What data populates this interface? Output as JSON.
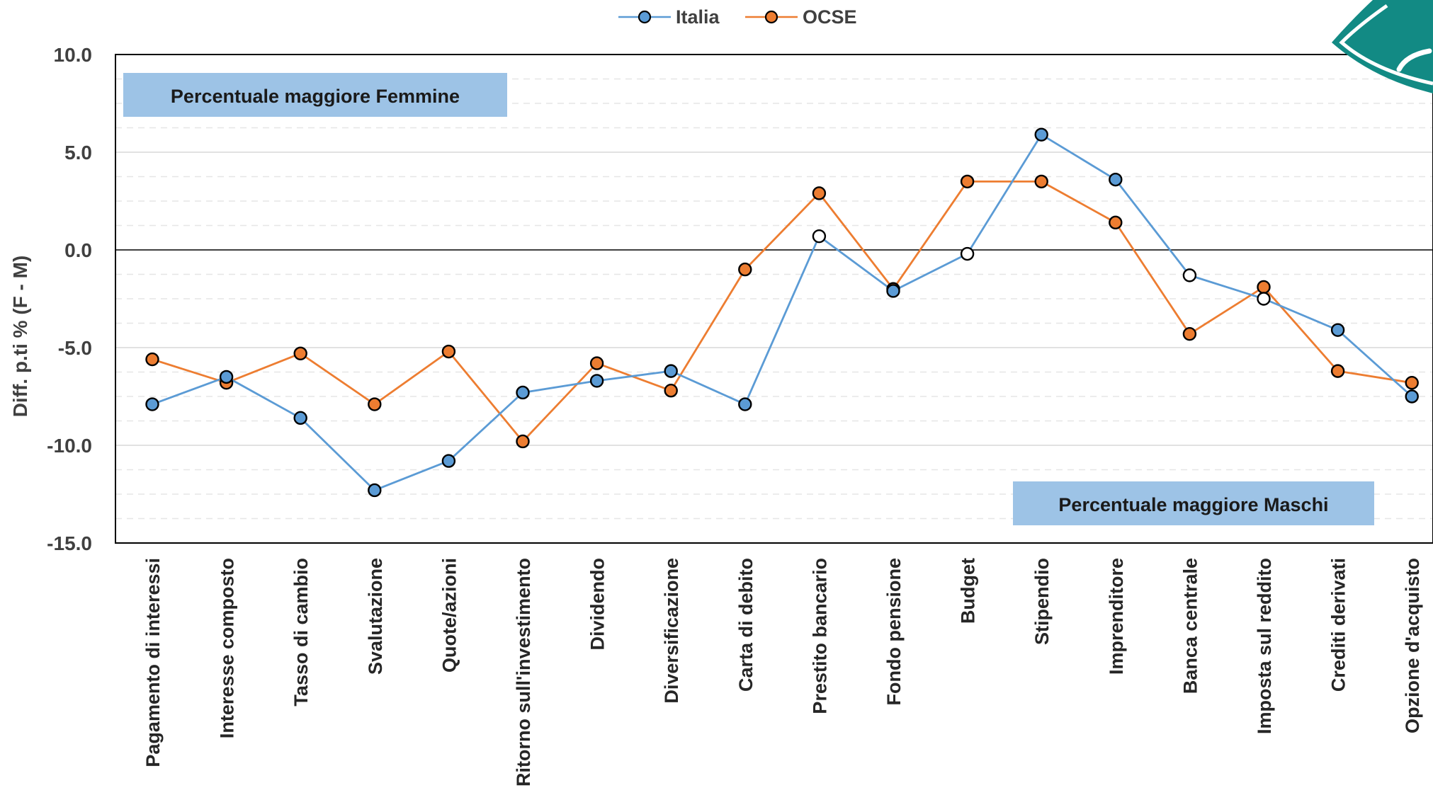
{
  "colors": {
    "italia": "#5b9bd5",
    "ocse": "#ed7d31",
    "box_fill": "#9dc3e6",
    "logo": "#128a84"
  },
  "icons": {
    "logo": "teal-badge-logo"
  },
  "chart_data": {
    "type": "line",
    "ylabel": "Diff. p.ti % (F - M)",
    "ylim": [
      -15,
      10
    ],
    "yticks": [
      "10.0",
      "5.0",
      "0.0",
      "-5.0",
      "-10.0",
      "-15.0"
    ],
    "grid": "dashed-minor",
    "legend": "top-center",
    "categories": [
      "Pagamento di interessi",
      "Interesse composto",
      "Tasso di cambio",
      "Svalutazione",
      "Quote/azioni",
      "Ritorno sull'investimento",
      "Dividendo",
      "Diversificazione",
      "Carta di debito",
      "Prestito bancario",
      "Fondo pensione",
      "Budget",
      "Stipendio",
      "Imprenditore",
      "Banca centrale",
      "Imposta sul reddito",
      "Crediti derivati",
      "Opzione d'acquisto"
    ],
    "series": [
      {
        "name": "Italia",
        "values": [
          -7.9,
          -6.5,
          -8.6,
          -12.3,
          -10.8,
          -7.3,
          -6.7,
          -6.2,
          -7.9,
          0.7,
          -2.1,
          -0.2,
          5.9,
          3.6,
          -1.3,
          -2.5,
          -4.1,
          -7.5
        ],
        "hollow": [
          false,
          false,
          false,
          false,
          false,
          false,
          false,
          false,
          false,
          true,
          false,
          true,
          false,
          false,
          true,
          true,
          false,
          false
        ]
      },
      {
        "name": "OCSE",
        "values": [
          -5.6,
          -6.8,
          -5.3,
          -7.9,
          -5.2,
          -9.8,
          -5.8,
          -7.2,
          -1.0,
          2.9,
          -2.0,
          3.5,
          3.5,
          1.4,
          -4.3,
          -1.9,
          -6.2,
          -6.8
        ],
        "hollow": [
          false,
          false,
          false,
          false,
          false,
          false,
          false,
          false,
          false,
          false,
          false,
          false,
          false,
          false,
          false,
          false,
          false,
          false
        ]
      }
    ],
    "annotations": [
      {
        "text": "Percentuale maggiore Femmine",
        "position": "top-left"
      },
      {
        "text": "Percentuale maggiore Maschi",
        "position": "bottom-right"
      }
    ]
  }
}
